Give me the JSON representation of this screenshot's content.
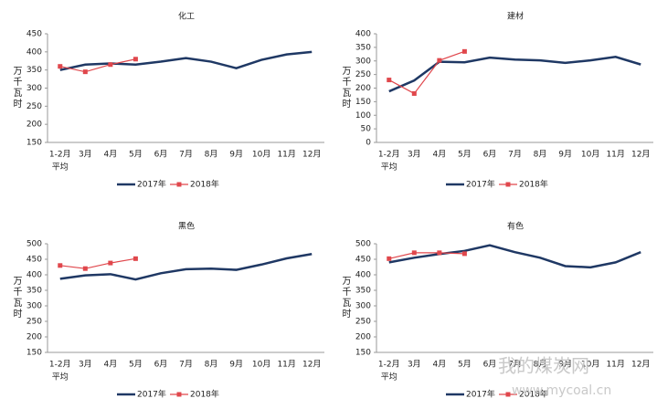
{
  "chart_data": [
    {
      "type": "line",
      "title": "化工",
      "y_label": "万千瓦时",
      "categories": [
        "1-2月",
        "3月",
        "4月",
        "5月",
        "6月",
        "7月",
        "8月",
        "9月",
        "10月",
        "11月",
        "12月"
      ],
      "x_sub_label": "平均",
      "ylim": [
        150,
        450
      ],
      "yticks": [
        150,
        200,
        250,
        300,
        350,
        400,
        450
      ],
      "series": [
        {
          "name": "2017年",
          "color": "#1f3864",
          "values": [
            350,
            365,
            368,
            365,
            373,
            383,
            373,
            355,
            378,
            393,
            400
          ]
        },
        {
          "name": "2018年",
          "color": "#e0474c",
          "values": [
            360,
            345,
            365,
            380,
            null,
            null,
            null,
            null,
            null,
            null,
            null
          ]
        }
      ]
    },
    {
      "type": "line",
      "title": "建材",
      "y_label": "万千瓦时",
      "categories": [
        "1-2月",
        "3月",
        "4月",
        "5月",
        "6月",
        "7月",
        "8月",
        "9月",
        "10月",
        "11月",
        "12月"
      ],
      "x_sub_label": "平均",
      "ylim": [
        0,
        400
      ],
      "yticks": [
        0,
        50,
        100,
        150,
        200,
        250,
        300,
        350,
        400
      ],
      "series": [
        {
          "name": "2017年",
          "color": "#1f3864",
          "values": [
            188,
            228,
            297,
            295,
            312,
            305,
            302,
            293,
            302,
            315,
            287
          ]
        },
        {
          "name": "2018年",
          "color": "#e0474c",
          "values": [
            230,
            180,
            302,
            335,
            null,
            null,
            null,
            null,
            null,
            null,
            null
          ]
        }
      ]
    },
    {
      "type": "line",
      "title": "黑色",
      "y_label": "万千瓦时",
      "categories": [
        "1-2月",
        "3月",
        "4月",
        "5月",
        "6月",
        "7月",
        "8月",
        "9月",
        "10月",
        "11月",
        "12月"
      ],
      "x_sub_label": "平均",
      "ylim": [
        150,
        500
      ],
      "yticks": [
        150,
        200,
        250,
        300,
        350,
        400,
        450,
        500
      ],
      "series": [
        {
          "name": "2017年",
          "color": "#1f3864",
          "values": [
            387,
            398,
            402,
            385,
            405,
            418,
            420,
            416,
            433,
            453,
            467
          ]
        },
        {
          "name": "2018年",
          "color": "#e0474c",
          "values": [
            430,
            420,
            438,
            452,
            null,
            null,
            null,
            null,
            null,
            null,
            null
          ]
        }
      ]
    },
    {
      "type": "line",
      "title": "有色",
      "y_label": "万千瓦时",
      "categories": [
        "1-2月",
        "3月",
        "4月",
        "5月",
        "6月",
        "7月",
        "8月",
        "9月",
        "10月",
        "11月",
        "12月"
      ],
      "x_sub_label": "平均",
      "ylim": [
        150,
        500
      ],
      "yticks": [
        150,
        200,
        250,
        300,
        350,
        400,
        450,
        500
      ],
      "series": [
        {
          "name": "2017年",
          "color": "#1f3864",
          "values": [
            440,
            455,
            467,
            477,
            495,
            473,
            455,
            428,
            424,
            440,
            473
          ]
        },
        {
          "name": "2018年",
          "color": "#e0474c",
          "values": [
            452,
            471,
            471,
            468,
            null,
            null,
            null,
            null,
            null,
            null,
            null
          ]
        }
      ]
    }
  ],
  "watermark": {
    "brand": "我的煤炭网",
    "url": "www.mycoal.cn"
  }
}
